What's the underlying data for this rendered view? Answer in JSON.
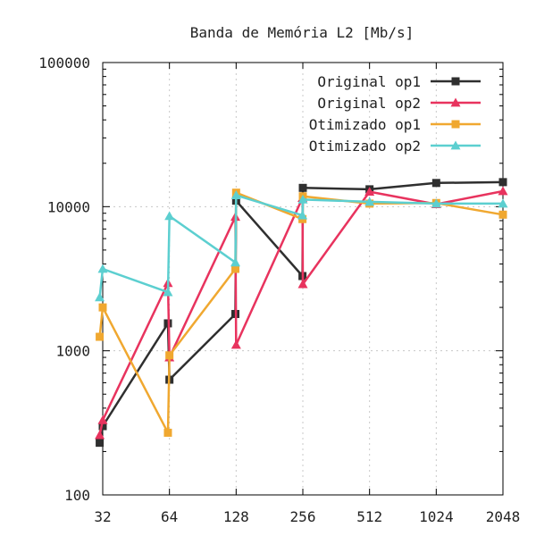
{
  "chart_data": {
    "type": "line",
    "title": "Banda de Memória L2 [Mb/s]",
    "xlabel": "",
    "ylabel": "",
    "x_scale": "log2",
    "y_scale": "log10",
    "xlim": [
      32,
      2048
    ],
    "ylim": [
      100,
      100000
    ],
    "x_ticks": [
      32,
      64,
      128,
      256,
      512,
      1024,
      2048
    ],
    "x_tick_labels": [
      "32",
      "64",
      "128",
      "256",
      "512",
      "1024",
      "2048"
    ],
    "y_ticks": [
      100,
      1000,
      10000,
      100000
    ],
    "y_tick_labels": [
      "100",
      "1000",
      "10000",
      "100000"
    ],
    "grid": true,
    "legend_position": "top-right",
    "series": [
      {
        "name": "Original op1",
        "color": "#2f2f2f",
        "marker": "square",
        "points": [
          [
            31,
            230
          ],
          [
            32,
            300
          ],
          [
            63,
            1550
          ],
          [
            64,
            630
          ],
          [
            127,
            1800
          ],
          [
            128,
            11000
          ],
          [
            255,
            3300
          ],
          [
            256,
            13500
          ],
          [
            512,
            13200
          ],
          [
            1024,
            14600
          ],
          [
            2048,
            14800
          ]
        ]
      },
      {
        "name": "Original op2",
        "color": "#e8335e",
        "marker": "triangle",
        "points": [
          [
            31,
            260
          ],
          [
            32,
            330
          ],
          [
            63,
            2950
          ],
          [
            64,
            900
          ],
          [
            127,
            8500
          ],
          [
            128,
            1100
          ],
          [
            255,
            11500
          ],
          [
            256,
            2900
          ],
          [
            512,
            12700
          ],
          [
            1024,
            10400
          ],
          [
            2048,
            12800
          ]
        ]
      },
      {
        "name": "Otimizado op1",
        "color": "#f0a830",
        "marker": "square",
        "points": [
          [
            31,
            1250
          ],
          [
            32,
            2000
          ],
          [
            63,
            270
          ],
          [
            64,
            930
          ],
          [
            127,
            3700
          ],
          [
            128,
            12500
          ],
          [
            255,
            8200
          ],
          [
            256,
            11800
          ],
          [
            512,
            10500
          ],
          [
            1024,
            10600
          ],
          [
            2048,
            8800
          ]
        ]
      },
      {
        "name": "Otimizado op2",
        "color": "#5ccfd0",
        "marker": "triangle",
        "points": [
          [
            31,
            2350
          ],
          [
            32,
            3700
          ],
          [
            63,
            2550
          ],
          [
            64,
            8600
          ],
          [
            127,
            4100
          ],
          [
            128,
            12000
          ],
          [
            255,
            8700
          ],
          [
            256,
            11200
          ],
          [
            512,
            10800
          ],
          [
            1024,
            10500
          ],
          [
            2048,
            10500
          ]
        ]
      }
    ]
  }
}
